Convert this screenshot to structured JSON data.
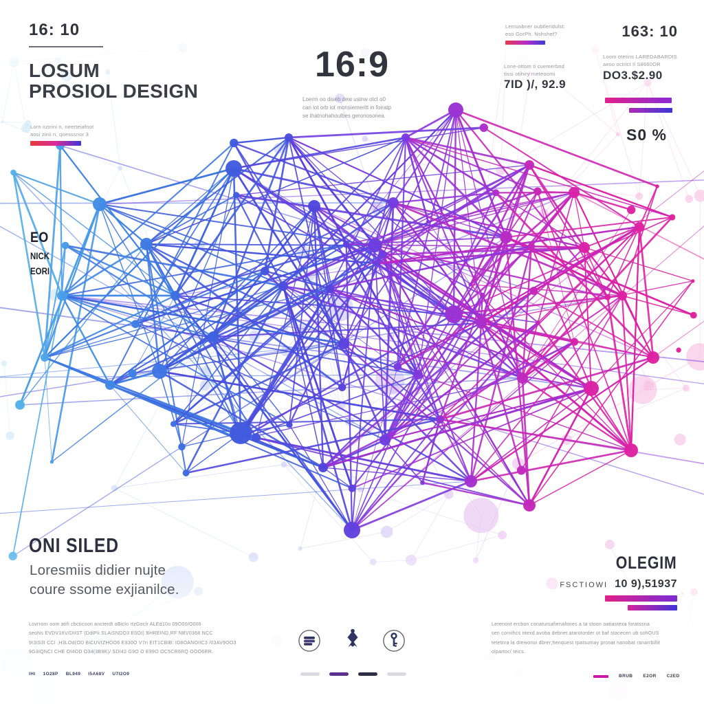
{
  "top_left": {
    "ratio": "16: 10",
    "title_line1": "LOSUM",
    "title_line2": "PROSIOL DESIGN",
    "note_line1": "Lorn iusrini n, neerteiafnot",
    "note_line2": "aosi zinii n, qoesssnor      3"
  },
  "top_center": {
    "ratio": "16:9",
    "desc_line1": "Loerm oo diseb dew usinw otct o0",
    "desc_line2": "can iot orb iot monsiemeritt in foiratp",
    "desc_line3": "se thatnohahoulbes geronosonea."
  },
  "top_right": {
    "note1_line1": "Lemusbner oubtleridulst:",
    "note1_line2": "eso GorPh. Nshshef?",
    "ratio": "163: 10",
    "note2_line1": "Lone-ottom ti cuemerbnd",
    "note2_line2": "tissi otihiry meteoomi",
    "stat1": "7ID )/, 92.9",
    "note3_line1": "Loom otetins LAREDABARDIS",
    "note3_line2": "aeso octrict Il S8660OR",
    "stat2": "DO3.$2.90",
    "percent": "S0 %"
  },
  "left_label": {
    "lines": [
      "EO",
      "NICK",
      "EORI"
    ]
  },
  "bottom_left": {
    "heading": "ONI SILED",
    "sub_line1": "Loresmiis didier nujte",
    "sub_line2": "coure ssome exjianilce.",
    "fine_lines": [
      "Lovrrorn oom atifi cbcticoon ancterdt oBiclo rtzGoclr ALEd10o 09O00/O0Il6",
      "seoNs EVDV1tIV/DIIST (DdiPIi SLAiSNDO3 E0OI) BHREIND.RF NBV0368 NCC",
      "9I3IS3I CCI ,H3LOd(OD BiCUVIZHOO6 E930O V7ri EIT1CBIB: ID8OANOIIC3 /03AV9OO3",
      "9G3IQNCI CHE OI4OD O34(3B9K)/ SDI42 G9O O E99O OC5CR6RQ OOO6RR."
    ],
    "micro_labels": [
      "IHI",
      "1O28P",
      "BL949",
      "I5A68V",
      "U7I2O9"
    ]
  },
  "bottom_center": {
    "icon_names": [
      "layers-icon",
      "chess-piece-icon",
      "key-icon"
    ],
    "dash_colors": [
      "#dadae0",
      "#5c2f90",
      "#2d2d46",
      "#dadae0"
    ]
  },
  "bottom_right": {
    "heading": "OLEGIM",
    "label": "FSCTIOWI",
    "number": "10 9),51937",
    "fine_lines": [
      "Lerenont ercbon conatursafienafones a ta stoon oatiastexa foratssna",
      "sen cornihcs ntexd avoba debnet atarotorder ot baf stacecen ub sohOUS",
      "tetetnra la drewonoi dbrer;henquest rpatsumay pronat nanobat ranarrbillit",
      "olpartoc/ teics."
    ],
    "page_marker_color": "#cc17a8",
    "page_labels": [
      "BRUB",
      "E2OR",
      "C2ED"
    ]
  },
  "bars": {
    "top_left": [
      "#e63a3a",
      "#d82b9a",
      "#4233d8"
    ],
    "top_right": [
      "#e63a4e",
      "#b82cc8",
      "#3d3bd8"
    ],
    "right_a": [
      "#e0218a",
      "#8a2ad8"
    ],
    "right_b": [
      "#b02ab8",
      "#3a36d8"
    ],
    "bottom_right_a": [
      "#e0218a",
      "#7b2bd4"
    ],
    "bottom_right_b": [
      "#d8219c",
      "#3f35d8"
    ]
  },
  "network": {
    "description": "abstract plexus network, blue to magenta gradient left-to-right",
    "stops": [
      {
        "t": 0.0,
        "color": "#58b9ea"
      },
      {
        "t": 0.16,
        "color": "#3f86e4"
      },
      {
        "t": 0.32,
        "color": "#3e5ede"
      },
      {
        "t": 0.46,
        "color": "#5244dd"
      },
      {
        "t": 0.58,
        "color": "#7c3ae0"
      },
      {
        "t": 0.7,
        "color": "#b32cc8"
      },
      {
        "t": 0.82,
        "color": "#d922a8"
      },
      {
        "t": 1.0,
        "color": "#e2219a"
      }
    ],
    "icon_color": "#2e3560"
  }
}
